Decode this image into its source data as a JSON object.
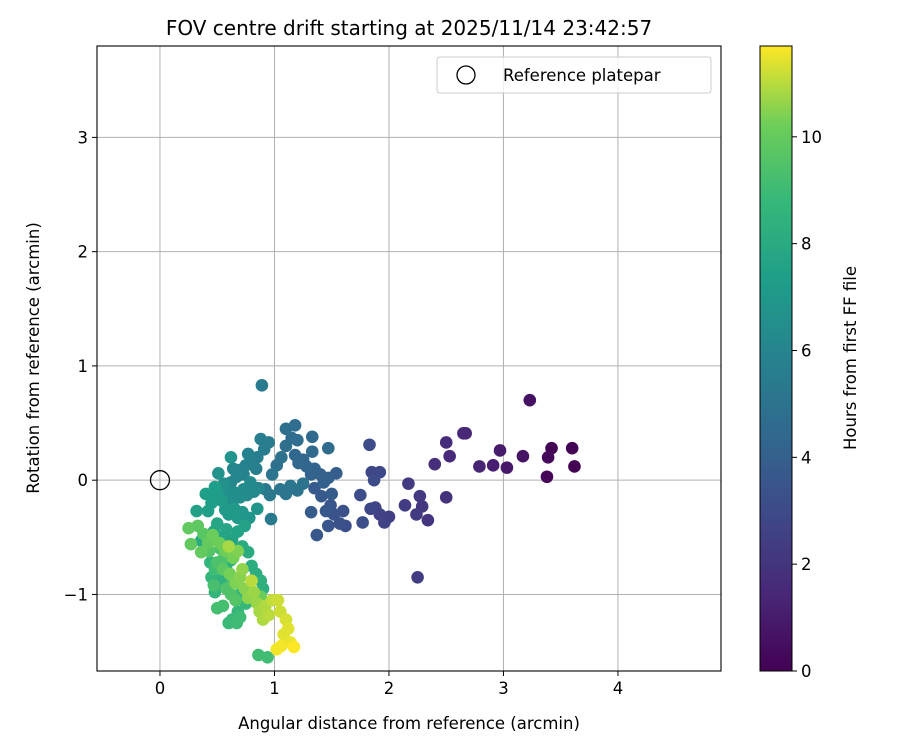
{
  "chart_data": {
    "type": "scatter",
    "title": "FOV centre drift starting at 2025/11/14 23:42:57",
    "xlabel": "Angular distance from reference (arcmin)",
    "ylabel": "Rotation from reference (arcmin)",
    "xlim": [
      -0.55,
      4.9
    ],
    "ylim": [
      -1.67,
      3.8
    ],
    "x_ticks": [
      0,
      1,
      2,
      3,
      4
    ],
    "y_ticks": [
      -1,
      0,
      1,
      2,
      3
    ],
    "x_tick_labels": [
      "0",
      "1",
      "2",
      "3",
      "4"
    ],
    "y_tick_labels": [
      "−1",
      "0",
      "1",
      "2",
      "3"
    ],
    "grid": true,
    "legend": {
      "placement": "top-right",
      "entries": [
        "Reference platepar"
      ]
    },
    "reference_point": {
      "x": 0,
      "y": 0,
      "label": "Reference platepar"
    },
    "colorbar": {
      "label": "Hours from first FF file",
      "range": [
        0,
        11.7
      ],
      "ticks": [
        0,
        2,
        4,
        6,
        8,
        10
      ],
      "tick_labels": [
        "0",
        "2",
        "4",
        "6",
        "8",
        "10"
      ],
      "colormap": "viridis"
    },
    "points": [
      {
        "x": 3.42,
        "y": 0.28,
        "t": 0.1
      },
      {
        "x": 3.6,
        "y": 0.28,
        "t": 0.1
      },
      {
        "x": 3.62,
        "y": 0.12,
        "t": 0.0
      },
      {
        "x": 3.38,
        "y": 0.03,
        "t": 0.2
      },
      {
        "x": 3.39,
        "y": 0.2,
        "t": 0.3
      },
      {
        "x": 3.23,
        "y": 0.7,
        "t": 0.6
      },
      {
        "x": 3.17,
        "y": 0.21,
        "t": 0.7
      },
      {
        "x": 3.03,
        "y": 0.11,
        "t": 0.9
      },
      {
        "x": 2.97,
        "y": 0.26,
        "t": 1.0
      },
      {
        "x": 2.91,
        "y": 0.13,
        "t": 1.1
      },
      {
        "x": 2.79,
        "y": 0.12,
        "t": 1.3
      },
      {
        "x": 2.67,
        "y": 0.41,
        "t": 1.4
      },
      {
        "x": 2.65,
        "y": 0.41,
        "t": 1.5
      },
      {
        "x": 2.53,
        "y": 0.21,
        "t": 1.6
      },
      {
        "x": 2.5,
        "y": 0.33,
        "t": 1.7
      },
      {
        "x": 2.4,
        "y": 0.14,
        "t": 1.8
      },
      {
        "x": 2.5,
        "y": -0.15,
        "t": 1.9
      },
      {
        "x": 2.34,
        "y": -0.35,
        "t": 2.0
      },
      {
        "x": 2.29,
        "y": -0.23,
        "t": 2.1
      },
      {
        "x": 2.27,
        "y": -0.14,
        "t": 2.2
      },
      {
        "x": 2.24,
        "y": -0.3,
        "t": 2.3
      },
      {
        "x": 2.17,
        "y": -0.03,
        "t": 2.3
      },
      {
        "x": 2.14,
        "y": -0.22,
        "t": 2.4
      },
      {
        "x": 2.25,
        "y": -0.85,
        "t": 2.4
      },
      {
        "x": 2.0,
        "y": -0.32,
        "t": 2.5
      },
      {
        "x": 1.96,
        "y": -0.37,
        "t": 2.6
      },
      {
        "x": 1.92,
        "y": -0.3,
        "t": 2.6
      },
      {
        "x": 1.88,
        "y": -0.24,
        "t": 2.7
      },
      {
        "x": 1.84,
        "y": -0.25,
        "t": 2.8
      },
      {
        "x": 1.85,
        "y": 0.07,
        "t": 2.8
      },
      {
        "x": 1.92,
        "y": 0.07,
        "t": 2.9
      },
      {
        "x": 1.87,
        "y": 0.0,
        "t": 3.0
      },
      {
        "x": 1.83,
        "y": 0.31,
        "t": 3.0
      },
      {
        "x": 1.75,
        "y": -0.13,
        "t": 3.1
      },
      {
        "x": 1.77,
        "y": -0.37,
        "t": 3.2
      },
      {
        "x": 1.62,
        "y": -0.4,
        "t": 3.2
      },
      {
        "x": 1.6,
        "y": -0.27,
        "t": 3.3
      },
      {
        "x": 1.57,
        "y": -0.38,
        "t": 3.3
      },
      {
        "x": 1.52,
        "y": -0.3,
        "t": 3.4
      },
      {
        "x": 1.49,
        "y": -0.22,
        "t": 3.5
      },
      {
        "x": 1.47,
        "y": -0.4,
        "t": 3.5
      },
      {
        "x": 1.45,
        "y": -0.27,
        "t": 3.6
      },
      {
        "x": 1.37,
        "y": -0.48,
        "t": 3.6
      },
      {
        "x": 1.41,
        "y": -0.14,
        "t": 3.7
      },
      {
        "x": 1.35,
        "y": -0.07,
        "t": 3.7
      },
      {
        "x": 1.32,
        "y": -0.28,
        "t": 3.8
      },
      {
        "x": 1.5,
        "y": -0.12,
        "t": 3.8
      },
      {
        "x": 1.54,
        "y": 0.06,
        "t": 3.9
      },
      {
        "x": 1.47,
        "y": 0.02,
        "t": 4.0
      },
      {
        "x": 1.43,
        "y": -0.02,
        "t": 4.0
      },
      {
        "x": 1.4,
        "y": 0.05,
        "t": 4.1
      },
      {
        "x": 1.35,
        "y": 0.1,
        "t": 4.2
      },
      {
        "x": 1.32,
        "y": 0.05,
        "t": 4.2
      },
      {
        "x": 1.28,
        "y": 0.12,
        "t": 4.3
      },
      {
        "x": 1.25,
        "y": 0.18,
        "t": 4.3
      },
      {
        "x": 1.21,
        "y": 0.15,
        "t": 4.4
      },
      {
        "x": 1.18,
        "y": 0.22,
        "t": 4.4
      },
      {
        "x": 1.33,
        "y": 0.25,
        "t": 4.5
      },
      {
        "x": 1.33,
        "y": 0.38,
        "t": 4.5
      },
      {
        "x": 1.47,
        "y": 0.28,
        "t": 4.6
      },
      {
        "x": 1.15,
        "y": 0.37,
        "t": 4.6
      },
      {
        "x": 1.18,
        "y": 0.48,
        "t": 4.7
      },
      {
        "x": 1.2,
        "y": 0.35,
        "t": 4.7
      },
      {
        "x": 1.1,
        "y": 0.45,
        "t": 4.8
      },
      {
        "x": 1.1,
        "y": 0.3,
        "t": 4.8
      },
      {
        "x": 1.06,
        "y": 0.2,
        "t": 4.9
      },
      {
        "x": 1.02,
        "y": 0.13,
        "t": 4.9
      },
      {
        "x": 1.25,
        "y": -0.03,
        "t": 5.0
      },
      {
        "x": 1.2,
        "y": -0.09,
        "t": 5.0
      },
      {
        "x": 1.14,
        "y": -0.05,
        "t": 5.1
      },
      {
        "x": 1.1,
        "y": -0.12,
        "t": 5.1
      },
      {
        "x": 1.05,
        "y": -0.08,
        "t": 5.2
      },
      {
        "x": 0.98,
        "y": 0.05,
        "t": 5.2
      },
      {
        "x": 0.96,
        "y": -0.13,
        "t": 5.3
      },
      {
        "x": 0.92,
        "y": -0.08,
        "t": 5.3
      },
      {
        "x": 0.97,
        "y": -0.34,
        "t": 5.4
      },
      {
        "x": 0.89,
        "y": 0.83,
        "t": 5.4
      },
      {
        "x": 0.95,
        "y": 0.33,
        "t": 5.5
      },
      {
        "x": 0.91,
        "y": 0.27,
        "t": 5.5
      },
      {
        "x": 0.88,
        "y": 0.36,
        "t": 5.6
      },
      {
        "x": 0.85,
        "y": 0.2,
        "t": 5.6
      },
      {
        "x": 0.84,
        "y": 0.1,
        "t": 5.7
      },
      {
        "x": 0.8,
        "y": 0.16,
        "t": 5.7
      },
      {
        "x": 0.77,
        "y": 0.23,
        "t": 5.8
      },
      {
        "x": 0.75,
        "y": 0.13,
        "t": 5.8
      },
      {
        "x": 0.73,
        "y": 0.05,
        "t": 5.9
      },
      {
        "x": 0.7,
        "y": 0.09,
        "t": 5.9
      },
      {
        "x": 0.67,
        "y": 0.03,
        "t": 6.0
      },
      {
        "x": 0.64,
        "y": 0.1,
        "t": 6.0
      },
      {
        "x": 0.62,
        "y": -0.02,
        "t": 6.1
      },
      {
        "x": 0.86,
        "y": -0.07,
        "t": 6.1
      },
      {
        "x": 0.82,
        "y": -0.1,
        "t": 6.2
      },
      {
        "x": 0.79,
        "y": -0.02,
        "t": 6.2
      },
      {
        "x": 0.76,
        "y": -0.13,
        "t": 6.3
      },
      {
        "x": 0.73,
        "y": -0.08,
        "t": 6.3
      },
      {
        "x": 0.7,
        "y": -0.15,
        "t": 6.4
      },
      {
        "x": 0.66,
        "y": -0.11,
        "t": 6.4
      },
      {
        "x": 0.63,
        "y": -0.2,
        "t": 6.5
      },
      {
        "x": 0.6,
        "y": -0.18,
        "t": 6.5
      },
      {
        "x": 0.57,
        "y": -0.1,
        "t": 6.6
      },
      {
        "x": 0.56,
        "y": -0.03,
        "t": 6.6
      },
      {
        "x": 0.53,
        "y": -0.07,
        "t": 6.7
      },
      {
        "x": 0.51,
        "y": 0.06,
        "t": 6.7
      },
      {
        "x": 0.62,
        "y": 0.2,
        "t": 6.8
      },
      {
        "x": 0.85,
        "y": -0.25,
        "t": 6.8
      },
      {
        "x": 0.78,
        "y": -0.33,
        "t": 6.9
      },
      {
        "x": 0.72,
        "y": -0.28,
        "t": 6.9
      },
      {
        "x": 0.68,
        "y": -0.33,
        "t": 7.0
      },
      {
        "x": 0.65,
        "y": -0.25,
        "t": 7.0
      },
      {
        "x": 0.6,
        "y": -0.3,
        "t": 7.1
      },
      {
        "x": 0.57,
        "y": -0.26,
        "t": 7.1
      },
      {
        "x": 0.54,
        "y": -0.18,
        "t": 7.2
      },
      {
        "x": 0.5,
        "y": -0.12,
        "t": 7.2
      },
      {
        "x": 0.48,
        "y": -0.06,
        "t": 7.3
      },
      {
        "x": 0.45,
        "y": -0.2,
        "t": 7.3
      },
      {
        "x": 0.4,
        "y": -0.12,
        "t": 7.4
      },
      {
        "x": 0.42,
        "y": -0.27,
        "t": 7.4
      },
      {
        "x": 0.32,
        "y": -0.27,
        "t": 7.5
      },
      {
        "x": 0.74,
        "y": -0.4,
        "t": 7.5
      },
      {
        "x": 0.68,
        "y": -0.45,
        "t": 7.6
      },
      {
        "x": 0.63,
        "y": -0.52,
        "t": 7.6
      },
      {
        "x": 0.58,
        "y": -0.43,
        "t": 7.7
      },
      {
        "x": 0.54,
        "y": -0.5,
        "t": 7.7
      },
      {
        "x": 0.5,
        "y": -0.38,
        "t": 7.8
      },
      {
        "x": 0.47,
        "y": -0.45,
        "t": 7.8
      },
      {
        "x": 0.43,
        "y": -0.52,
        "t": 7.9
      },
      {
        "x": 0.39,
        "y": -0.6,
        "t": 7.9
      },
      {
        "x": 0.36,
        "y": -0.53,
        "t": 8.0
      },
      {
        "x": 0.66,
        "y": -0.6,
        "t": 8.0
      },
      {
        "x": 0.72,
        "y": -0.58,
        "t": 8.1
      },
      {
        "x": 0.77,
        "y": -0.63,
        "t": 8.1
      },
      {
        "x": 0.8,
        "y": -0.75,
        "t": 8.2
      },
      {
        "x": 0.84,
        "y": -0.82,
        "t": 8.2
      },
      {
        "x": 0.88,
        "y": -0.88,
        "t": 8.3
      },
      {
        "x": 0.9,
        "y": -0.95,
        "t": 8.3
      },
      {
        "x": 0.62,
        "y": -0.7,
        "t": 8.4
      },
      {
        "x": 0.58,
        "y": -0.78,
        "t": 8.4
      },
      {
        "x": 0.55,
        "y": -0.85,
        "t": 8.5
      },
      {
        "x": 0.52,
        "y": -0.92,
        "t": 8.5
      },
      {
        "x": 0.48,
        "y": -0.98,
        "t": 8.6
      },
      {
        "x": 0.45,
        "y": -0.85,
        "t": 8.6
      },
      {
        "x": 0.44,
        "y": -0.72,
        "t": 8.7
      },
      {
        "x": 0.7,
        "y": -1.0,
        "t": 8.7
      },
      {
        "x": 0.75,
        "y": -1.08,
        "t": 8.8
      },
      {
        "x": 0.68,
        "y": -1.15,
        "t": 8.8
      },
      {
        "x": 0.63,
        "y": -1.22,
        "t": 8.9
      },
      {
        "x": 0.6,
        "y": -1.25,
        "t": 8.9
      },
      {
        "x": 0.67,
        "y": -1.25,
        "t": 9.0
      },
      {
        "x": 0.7,
        "y": -1.2,
        "t": 9.0
      },
      {
        "x": 0.86,
        "y": -1.53,
        "t": 9.1
      },
      {
        "x": 0.94,
        "y": -1.55,
        "t": 9.1
      },
      {
        "x": 0.5,
        "y": -1.12,
        "t": 9.2
      },
      {
        "x": 0.55,
        "y": -1.1,
        "t": 9.2
      },
      {
        "x": 0.47,
        "y": -0.92,
        "t": 9.3
      },
      {
        "x": 0.53,
        "y": -0.6,
        "t": 9.3
      },
      {
        "x": 0.5,
        "y": -0.72,
        "t": 9.4
      },
      {
        "x": 0.56,
        "y": -0.68,
        "t": 9.4
      },
      {
        "x": 0.58,
        "y": -0.95,
        "t": 9.5
      },
      {
        "x": 0.62,
        "y": -1.0,
        "t": 9.5
      },
      {
        "x": 0.66,
        "y": -1.05,
        "t": 9.6
      },
      {
        "x": 0.43,
        "y": -0.62,
        "t": 9.6
      },
      {
        "x": 0.38,
        "y": -0.47,
        "t": 9.7
      },
      {
        "x": 0.33,
        "y": -0.4,
        "t": 9.8
      },
      {
        "x": 0.25,
        "y": -0.42,
        "t": 9.9
      },
      {
        "x": 0.27,
        "y": -0.56,
        "t": 9.9
      },
      {
        "x": 0.36,
        "y": -0.63,
        "t": 10.0
      },
      {
        "x": 0.42,
        "y": -0.55,
        "t": 10.0
      },
      {
        "x": 0.46,
        "y": -0.48,
        "t": 10.1
      },
      {
        "x": 0.52,
        "y": -0.55,
        "t": 10.2
      },
      {
        "x": 0.57,
        "y": -0.62,
        "t": 10.2
      },
      {
        "x": 0.64,
        "y": -0.68,
        "t": 10.3
      },
      {
        "x": 0.61,
        "y": -0.82,
        "t": 10.3
      },
      {
        "x": 0.66,
        "y": -0.9,
        "t": 10.4
      },
      {
        "x": 0.7,
        "y": -0.85,
        "t": 10.5
      },
      {
        "x": 0.74,
        "y": -0.95,
        "t": 10.5
      },
      {
        "x": 0.77,
        "y": -1.03,
        "t": 10.6
      },
      {
        "x": 0.82,
        "y": -0.98,
        "t": 10.7
      },
      {
        "x": 0.85,
        "y": -1.08,
        "t": 10.7
      },
      {
        "x": 0.87,
        "y": -1.15,
        "t": 10.8
      },
      {
        "x": 0.9,
        "y": -1.22,
        "t": 10.9
      },
      {
        "x": 0.92,
        "y": -1.1,
        "t": 10.9
      },
      {
        "x": 0.95,
        "y": -1.18,
        "t": 11.0
      },
      {
        "x": 0.98,
        "y": -1.05,
        "t": 11.1
      },
      {
        "x": 1.03,
        "y": -1.05,
        "t": 11.2
      },
      {
        "x": 1.05,
        "y": -1.15,
        "t": 11.2
      },
      {
        "x": 1.1,
        "y": -1.22,
        "t": 11.3
      },
      {
        "x": 1.08,
        "y": -1.35,
        "t": 11.4
      },
      {
        "x": 1.12,
        "y": -1.3,
        "t": 11.4
      },
      {
        "x": 1.14,
        "y": -1.42,
        "t": 11.5
      },
      {
        "x": 1.06,
        "y": -1.45,
        "t": 11.6
      },
      {
        "x": 1.02,
        "y": -1.48,
        "t": 11.6
      },
      {
        "x": 1.17,
        "y": -1.46,
        "t": 11.7
      },
      {
        "x": 0.8,
        "y": -0.88,
        "t": 11.0
      },
      {
        "x": 0.72,
        "y": -0.78,
        "t": 10.6
      },
      {
        "x": 0.68,
        "y": -0.62,
        "t": 10.4
      },
      {
        "x": 0.6,
        "y": -0.58,
        "t": 10.8
      },
      {
        "x": 0.55,
        "y": -0.78,
        "t": 9.8
      },
      {
        "x": 0.64,
        "y": -0.88,
        "t": 9.2
      },
      {
        "x": 0.48,
        "y": -0.78,
        "t": 9.0
      },
      {
        "x": 0.88,
        "y": -1.02,
        "t": 10.1
      }
    ]
  }
}
